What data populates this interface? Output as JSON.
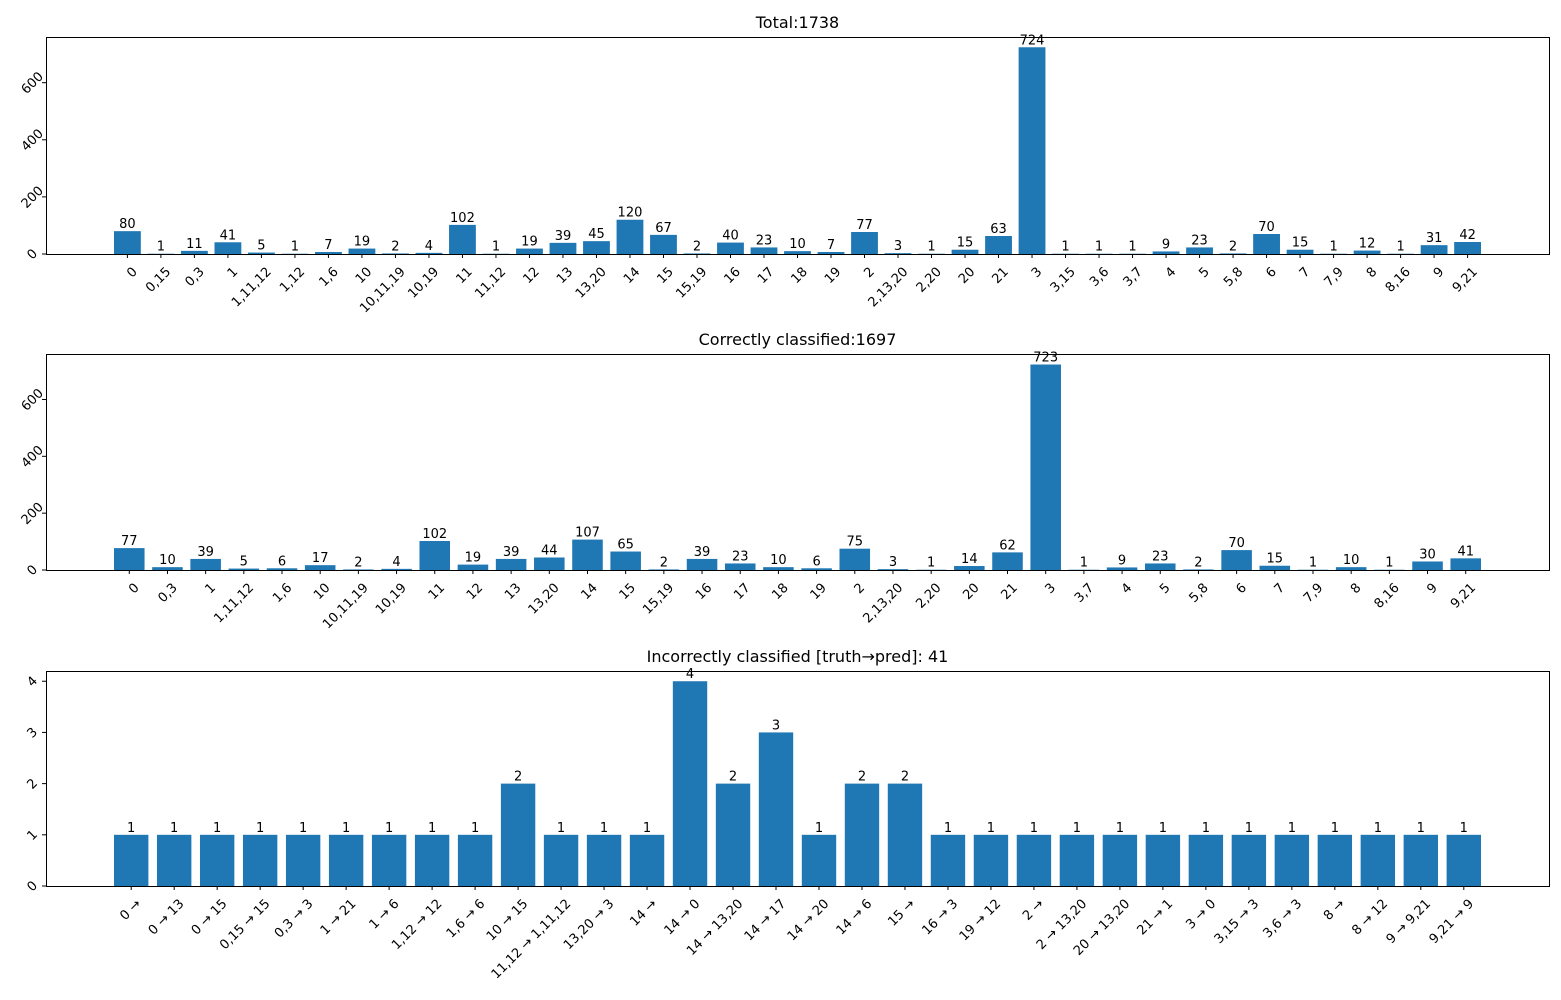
{
  "colors": {
    "bar": "#1f77b4",
    "axis": "#000000",
    "background": "#ffffff"
  },
  "chart_data": [
    {
      "type": "bar",
      "title": "Total:1738",
      "xlabel": "",
      "ylabel": "",
      "ylim": [
        0,
        760
      ],
      "yticks": [
        0,
        200,
        400,
        600
      ],
      "grid": false,
      "categories": [
        "0",
        "0,15",
        "0,3",
        "1",
        "1,11,12",
        "1,12",
        "1,6",
        "10",
        "10,11,19",
        "10,19",
        "11",
        "11,12",
        "12",
        "13",
        "13,20",
        "14",
        "15",
        "15,19",
        "16",
        "17",
        "18",
        "19",
        "2",
        "2,13,20",
        "2,20",
        "20",
        "21",
        "3",
        "3,15",
        "3,6",
        "3,7",
        "4",
        "5",
        "5,8",
        "6",
        "7",
        "7,9",
        "8",
        "8,16",
        "9",
        "9,21"
      ],
      "values": [
        80,
        1,
        11,
        41,
        5,
        1,
        7,
        19,
        2,
        4,
        102,
        1,
        19,
        39,
        45,
        120,
        67,
        2,
        40,
        23,
        10,
        7,
        77,
        3,
        1,
        15,
        63,
        724,
        1,
        1,
        1,
        9,
        23,
        2,
        70,
        15,
        1,
        12,
        1,
        31,
        42
      ]
    },
    {
      "type": "bar",
      "title": "Correctly classified:1697",
      "xlabel": "",
      "ylabel": "",
      "ylim": [
        0,
        760
      ],
      "yticks": [
        0,
        200,
        400,
        600
      ],
      "grid": false,
      "categories": [
        "0",
        "0,3",
        "1",
        "1,11,12",
        "1,6",
        "10",
        "10,11,19",
        "10,19",
        "11",
        "12",
        "13",
        "13,20",
        "14",
        "15",
        "15,19",
        "16",
        "17",
        "18",
        "19",
        "2",
        "2,13,20",
        "2,20",
        "20",
        "21",
        "3",
        "3,7",
        "4",
        "5",
        "5,8",
        "6",
        "7",
        "7,9",
        "8",
        "8,16",
        "9",
        "9,21"
      ],
      "values": [
        77,
        10,
        39,
        5,
        6,
        17,
        2,
        4,
        102,
        19,
        39,
        44,
        107,
        65,
        2,
        39,
        23,
        10,
        6,
        75,
        3,
        1,
        14,
        62,
        723,
        1,
        9,
        23,
        2,
        70,
        15,
        1,
        10,
        1,
        30,
        41
      ]
    },
    {
      "type": "bar",
      "title": "Incorrectly classified [truth→pred]: 41",
      "xlabel": "",
      "ylabel": "",
      "ylim": [
        0,
        4.2
      ],
      "yticks": [
        0,
        1,
        2,
        3,
        4
      ],
      "grid": false,
      "categories": [
        "0 →",
        "0 → 13",
        "0 → 15",
        "0,15 → 15",
        "0,3 → 3",
        "1 → 21",
        "1 → 6",
        "1,12 → 12",
        "1,6 → 6",
        "10 → 15",
        "11,12 → 1,11,12",
        "13,20 → 3",
        "14 →",
        "14 → 0",
        "14 → 13,20",
        "14 → 17",
        "14 → 20",
        "14 → 6",
        "15 →",
        "16 → 3",
        "19 → 12",
        "2 →",
        "2 → 13,20",
        "20 → 13,20",
        "21 → 1",
        "3 → 0",
        "3,15 → 3",
        "3,6 → 3",
        "8 →",
        "8 → 12",
        "9 → 9,21",
        "9,21 → 9"
      ],
      "values": [
        1,
        1,
        1,
        1,
        1,
        1,
        1,
        1,
        1,
        2,
        1,
        1,
        1,
        4,
        2,
        3,
        1,
        2,
        2,
        1,
        1,
        1,
        1,
        1,
        1,
        1,
        1,
        1,
        1,
        1,
        1,
        1
      ]
    }
  ]
}
